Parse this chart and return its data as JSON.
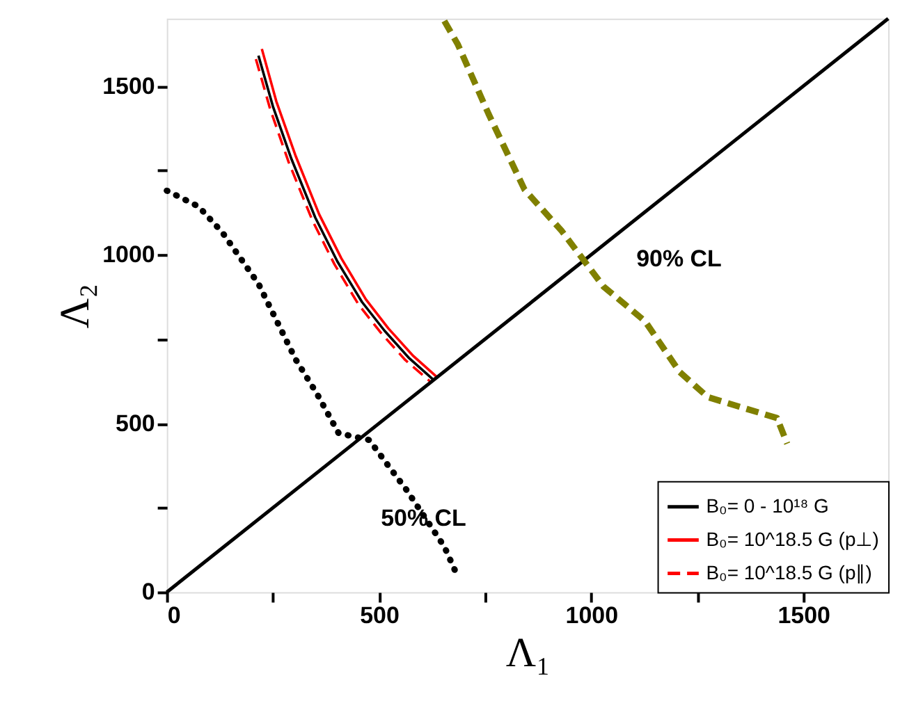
{
  "chart_data": {
    "type": "line",
    "xlabel": "Λ₁",
    "ylabel": "Λ₂",
    "xlim": [
      0,
      1700
    ],
    "ylim": [
      0,
      1700
    ],
    "xticks": [
      0,
      {
        "value": 250,
        "label": null
      },
      500,
      {
        "value": 750,
        "label": null
      },
      1000,
      {
        "value": 1250,
        "label": null
      },
      1500
    ],
    "yticks": [
      0,
      {
        "value": 250,
        "label": null
      },
      500,
      {
        "value": 750,
        "label": null
      },
      1000,
      {
        "value": 1250,
        "label": null
      },
      1500
    ],
    "grid": false,
    "legend": "bottom right",
    "marker": "none",
    "series": [
      {
        "name": "B₀= 0 - 10¹⁸ G",
        "color": "#000000",
        "line_style": "solid",
        "x": [
          216,
          250,
          294,
          350,
          402,
          460,
          513,
          570,
          627
        ],
        "values": [
          1590,
          1440,
          1283,
          1110,
          980,
          860,
          775,
          695,
          631
        ]
      },
      {
        "name": "B₀= 10^18.5 G (p⊥)",
        "color": "#ff0000",
        "line_style": "solid",
        "x": [
          224,
          258,
          303,
          359,
          411,
          469,
          522,
          580,
          637
        ],
        "values": [
          1610,
          1455,
          1295,
          1120,
          990,
          868,
          782,
          701,
          637
        ]
      },
      {
        "name": "B₀= 10^18.5 G (p∥)",
        "color": "#ff0000",
        "line_style": "dashed",
        "x": [
          210,
          244,
          287,
          343,
          395,
          452,
          505,
          562,
          620
        ],
        "values": [
          1580,
          1430,
          1275,
          1102,
          972,
          852,
          768,
          688,
          625
        ]
      },
      {
        "color": "#000000",
        "line_style": "solid",
        "x": [
          0,
          1700
        ],
        "values": [
          0,
          1700
        ]
      },
      {
        "color": "#000000",
        "line_style": "dotted",
        "x": [
          0,
          75,
          131,
          216,
          304,
          353,
          405,
          477,
          523,
          565,
          654,
          686
        ],
        "values": [
          1190,
          1143,
          1066,
          914,
          689,
          590,
          471,
          451,
          373,
          303,
          135,
          45
        ]
      },
      {
        "color": "#808000",
        "line_style": "dashed",
        "x": [
          654,
          686,
          758,
          843,
          931,
          1029,
          1127,
          1209,
          1275,
          1438,
          1462
        ],
        "values": [
          1693,
          1623,
          1418,
          1193,
          1070,
          906,
          803,
          652,
          578,
          516,
          440
        ]
      }
    ],
    "annotations": [
      "90% CL",
      {
        "text": "50% CL",
        "x": 605,
        "y": 217
      }
    ]
  }
}
